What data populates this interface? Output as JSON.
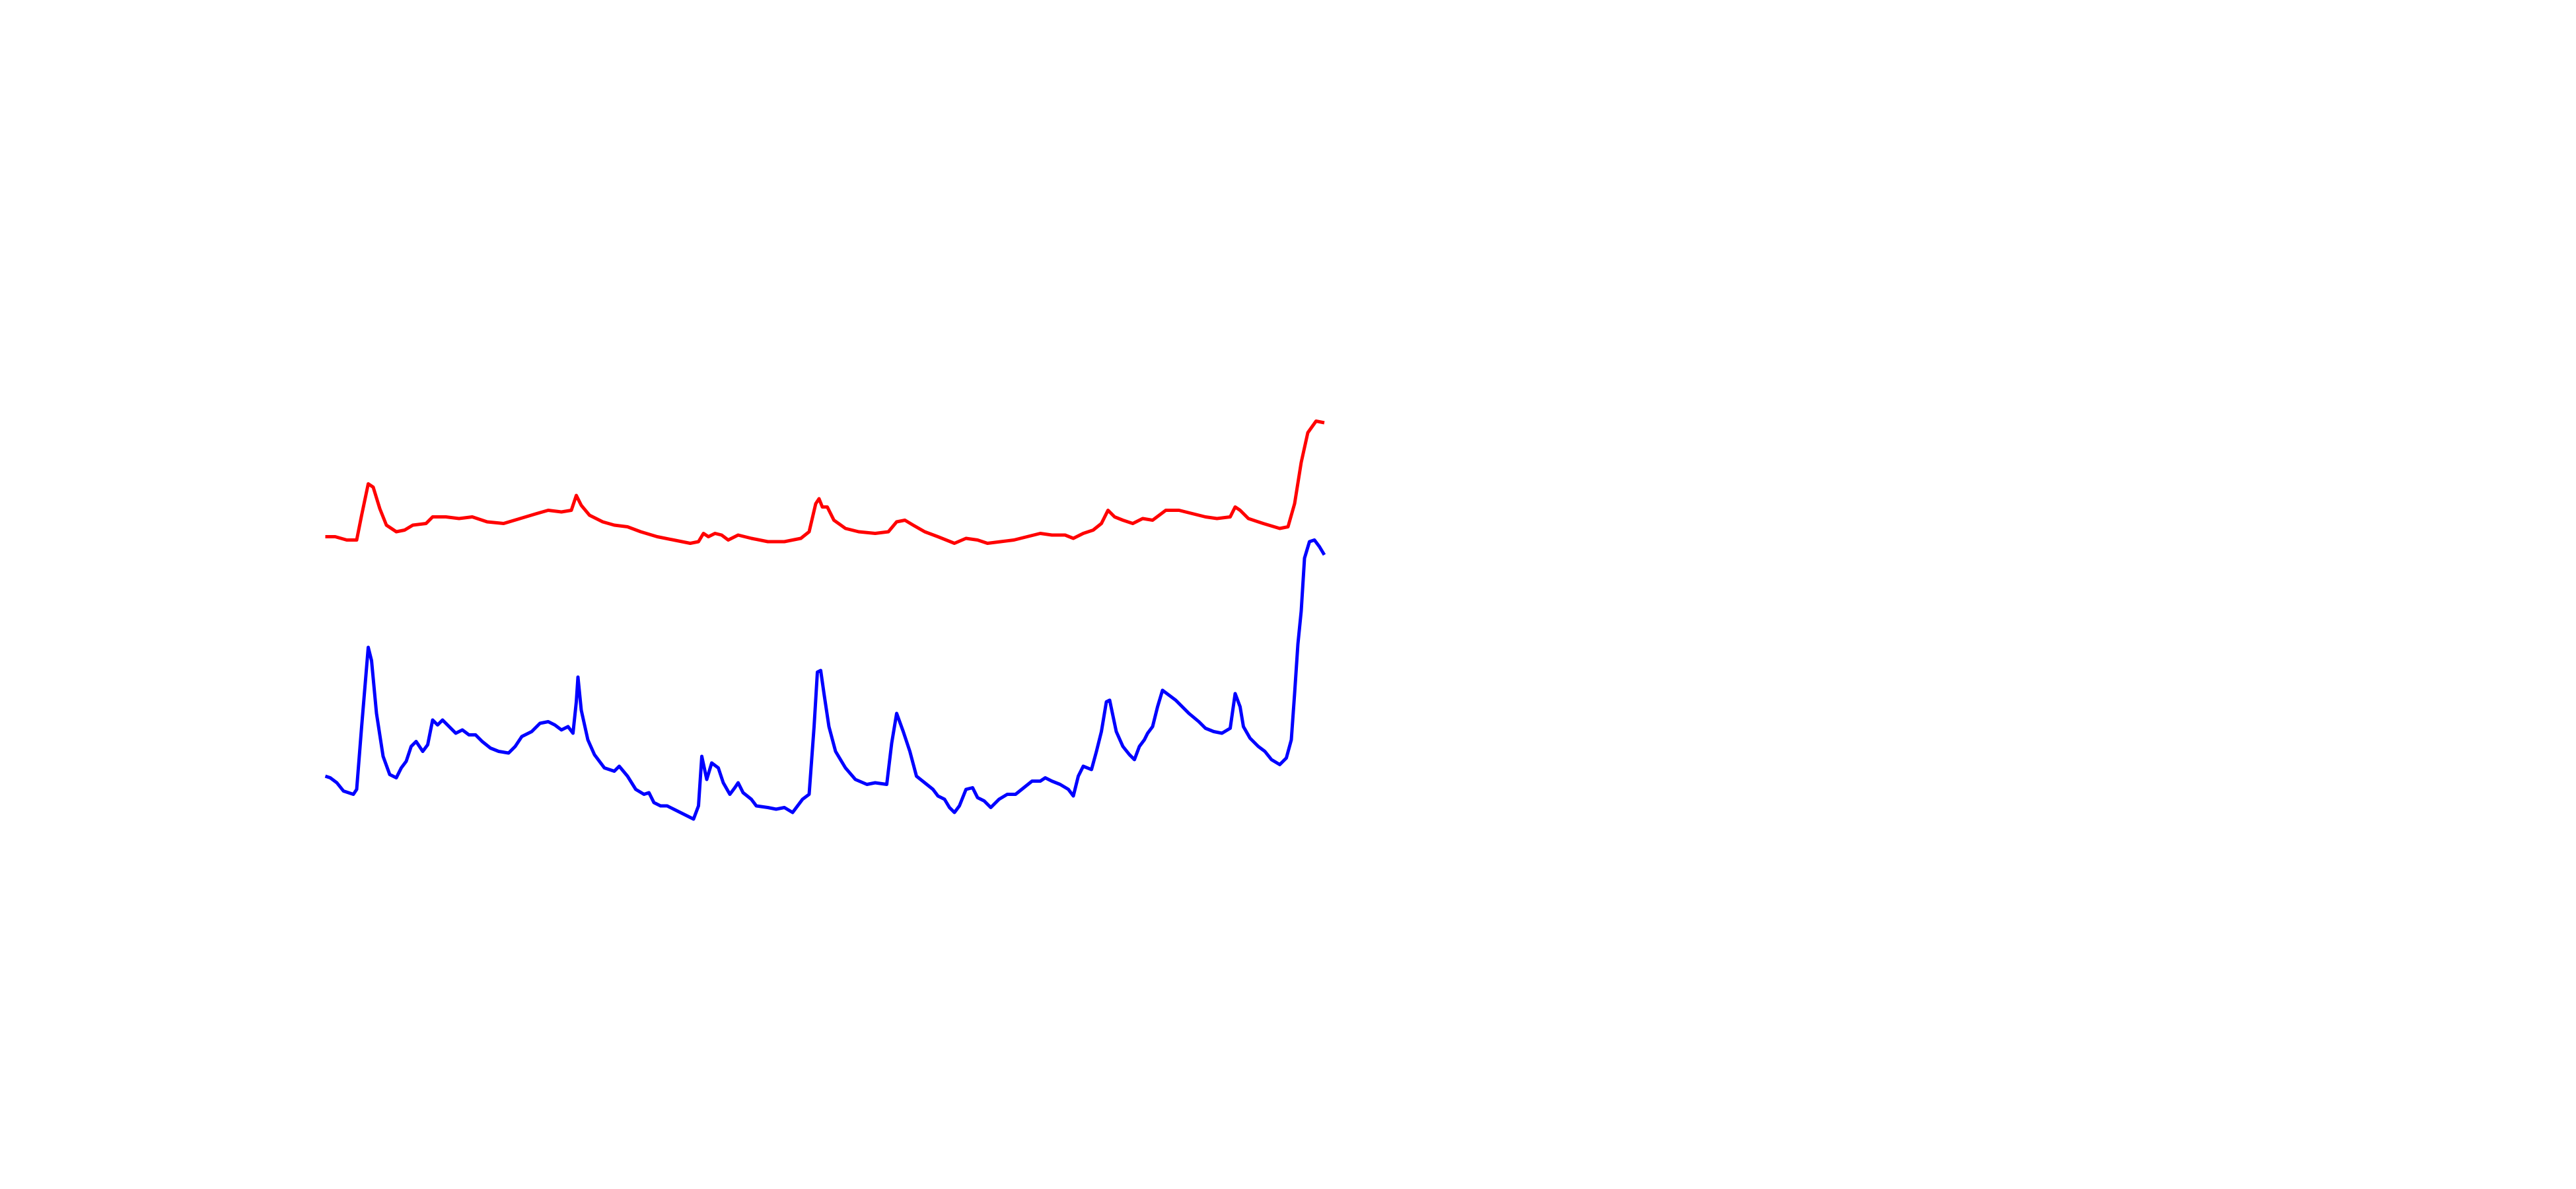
{
  "chart_data": {
    "type": "line",
    "xlim": [
      197,
      802
    ],
    "ylim": [
      0,
      250
    ],
    "series": [
      {
        "color": "#ff0000",
        "x": [
          197,
          203,
          210,
          216,
          219,
          223,
          226,
          230,
          234,
          240,
          245,
          250,
          258,
          262,
          270,
          278,
          286,
          295,
          305,
          315,
          325,
          332,
          340,
          346,
          349,
          352,
          357,
          365,
          372,
          380,
          388,
          398,
          408,
          418,
          423,
          426,
          429,
          433,
          437,
          441,
          447,
          455,
          465,
          475,
          485,
          490,
          494,
          496,
          498,
          501,
          505,
          512,
          520,
          530,
          538,
          543,
          548,
          553,
          560,
          568,
          578,
          585,
          592,
          598,
          606,
          614,
          622,
          630,
          637,
          645,
          650,
          656,
          662,
          667,
          671,
          675,
          680,
          686,
          692,
          698,
          706,
          714,
          722,
          730,
          737,
          745,
          748,
          751,
          756,
          765,
          775,
          780,
          784,
          788,
          792,
          797,
          802
        ],
        "values": [
          175,
          175,
          173,
          173,
          188,
          207,
          205,
          192,
          182,
          178,
          179,
          182,
          183,
          187,
          187,
          186,
          187,
          184,
          183,
          186,
          189,
          191,
          190,
          191,
          200,
          194,
          188,
          184,
          182,
          181,
          178,
          175,
          173,
          171,
          172,
          177,
          175,
          177,
          176,
          173,
          176,
          174,
          172,
          172,
          174,
          178,
          195,
          198,
          193,
          193,
          185,
          180,
          178,
          177,
          178,
          184,
          185,
          182,
          178,
          175,
          171,
          174,
          173,
          171,
          172,
          173,
          175,
          177,
          176,
          176,
          174,
          177,
          179,
          183,
          191,
          187,
          185,
          183,
          186,
          185,
          191,
          191,
          189,
          187,
          186,
          187,
          193,
          191,
          186,
          183,
          180,
          181,
          195,
          220,
          238,
          245,
          244
        ]
      },
      {
        "color": "#0000ff",
        "x": [
          197,
          200,
          204,
          208,
          214,
          216,
          219,
          223,
          225,
          228,
          232,
          236,
          240,
          243,
          246,
          249,
          252,
          256,
          259,
          262,
          265,
          268,
          272,
          276,
          280,
          284,
          288,
          292,
          297,
          302,
          308,
          312,
          316,
          322,
          327,
          332,
          336,
          340,
          344,
          347,
          349,
          350,
          352,
          356,
          360,
          366,
          372,
          375,
          380,
          385,
          390,
          393,
          396,
          400,
          404,
          408,
          414,
          420,
          423,
          425,
          428,
          431,
          435,
          438,
          442,
          445,
          447,
          450,
          455,
          458,
          465,
          470,
          475,
          480,
          483,
          486,
          490,
          493,
          495,
          497,
          499,
          502,
          506,
          512,
          518,
          525,
          530,
          537,
          540,
          543,
          547,
          551,
          555,
          560,
          565,
          568,
          572,
          575,
          578,
          581,
          585,
          589,
          592,
          596,
          600,
          605,
          610,
          615,
          620,
          625,
          630,
          633,
          637,
          642,
          647,
          650,
          653,
          656,
          661,
          664,
          667,
          670,
          672,
          676,
          680,
          684,
          687,
          690,
          693,
          695,
          698,
          701,
          704,
          708,
          712,
          716,
          720,
          726,
          730,
          735,
          740,
          745,
          748,
          751,
          753,
          757,
          762,
          766,
          770,
          775,
          779,
          782,
          784,
          786,
          788,
          790,
          793,
          796,
          799,
          802
        ],
        "values": [
          30,
          29,
          26,
          21,
          19,
          22,
          60,
          108,
          100,
          68,
          42,
          31,
          29,
          35,
          39,
          48,
          51,
          45,
          49,
          64,
          61,
          64,
          60,
          56,
          58,
          55,
          55,
          51,
          47,
          45,
          44,
          48,
          54,
          57,
          62,
          63,
          61,
          58,
          60,
          56,
          75,
          90,
          70,
          52,
          43,
          35,
          33,
          36,
          30,
          22,
          19,
          20,
          14,
          12,
          12,
          10,
          7,
          4,
          12,
          42,
          28,
          38,
          35,
          26,
          19,
          23,
          26,
          20,
          16,
          12,
          11,
          10,
          11,
          8,
          12,
          16,
          19,
          60,
          93,
          94,
          80,
          60,
          45,
          35,
          28,
          25,
          26,
          25,
          50,
          68,
          57,
          45,
          30,
          26,
          22,
          18,
          16,
          11,
          8,
          12,
          22,
          23,
          17,
          15,
          11,
          16,
          19,
          19,
          23,
          27,
          27,
          29,
          27,
          25,
          22,
          18,
          30,
          36,
          34,
          45,
          57,
          75,
          76,
          57,
          48,
          43,
          40,
          48,
          52,
          56,
          60,
          72,
          82,
          79,
          76,
          72,
          68,
          63,
          59,
          57,
          56,
          59,
          80,
          72,
          60,
          53,
          48,
          45,
          40,
          37,
          41,
          52,
          80,
          110,
          130,
          162,
          172,
          173,
          169,
          164
        ]
      }
    ]
  }
}
